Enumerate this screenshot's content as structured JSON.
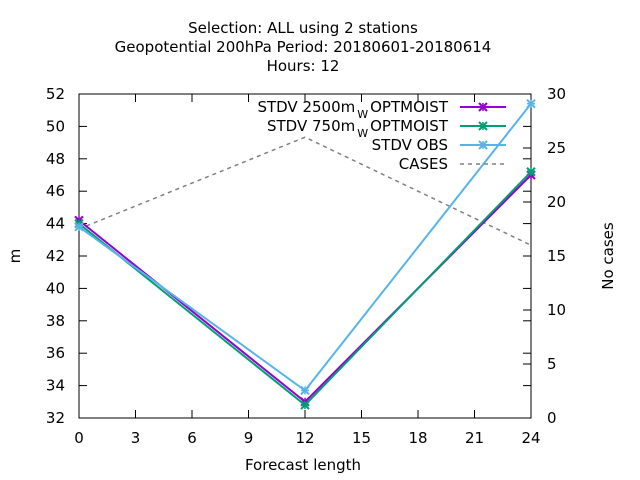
{
  "chart_data": {
    "type": "line",
    "title_lines": [
      "Selection: ALL using     2 stations",
      "Geopotential 200hPa   Period: 20180601-20180614",
      "Hours:  12"
    ],
    "xlabel": "Forecast length",
    "ylabel": "m",
    "y2label": "No cases",
    "xlim": [
      0,
      24
    ],
    "ylim": [
      32,
      52
    ],
    "y2lim": [
      0,
      30
    ],
    "xticks": [
      "0",
      "3",
      "6",
      "9",
      "12",
      "15",
      "18",
      "21",
      "24"
    ],
    "yticks": [
      "32",
      "34",
      "36",
      "38",
      "40",
      "42",
      "44",
      "46",
      "48",
      "50",
      "52"
    ],
    "y2ticks": [
      "0",
      "5",
      "10",
      "15",
      "20",
      "25",
      "30"
    ],
    "legend_position": "top-right",
    "x": [
      0,
      12,
      24
    ],
    "series": [
      {
        "name": "STDV 2500m",
        "subscript": "W",
        "suffix": "OPTMOIST",
        "axis": "y",
        "color": "#9400d3",
        "marker": "x",
        "dash": false,
        "values": [
          44.2,
          33.0,
          47.0
        ]
      },
      {
        "name": "STDV 750m",
        "subscript": "W",
        "suffix": "OPTMOIST",
        "axis": "y",
        "color": "#009e73",
        "marker": "x",
        "dash": false,
        "values": [
          44.0,
          32.8,
          47.2
        ]
      },
      {
        "name": "STDV OBS",
        "subscript": "",
        "suffix": "",
        "axis": "y",
        "color": "#56b4e9",
        "marker": "x",
        "dash": false,
        "values": [
          43.8,
          33.7,
          51.4
        ]
      },
      {
        "name": "CASES",
        "subscript": "",
        "suffix": "",
        "axis": "y2",
        "color": "#808080",
        "marker": "none",
        "dash": true,
        "values": [
          17.5,
          26.0,
          16.0
        ]
      }
    ]
  }
}
